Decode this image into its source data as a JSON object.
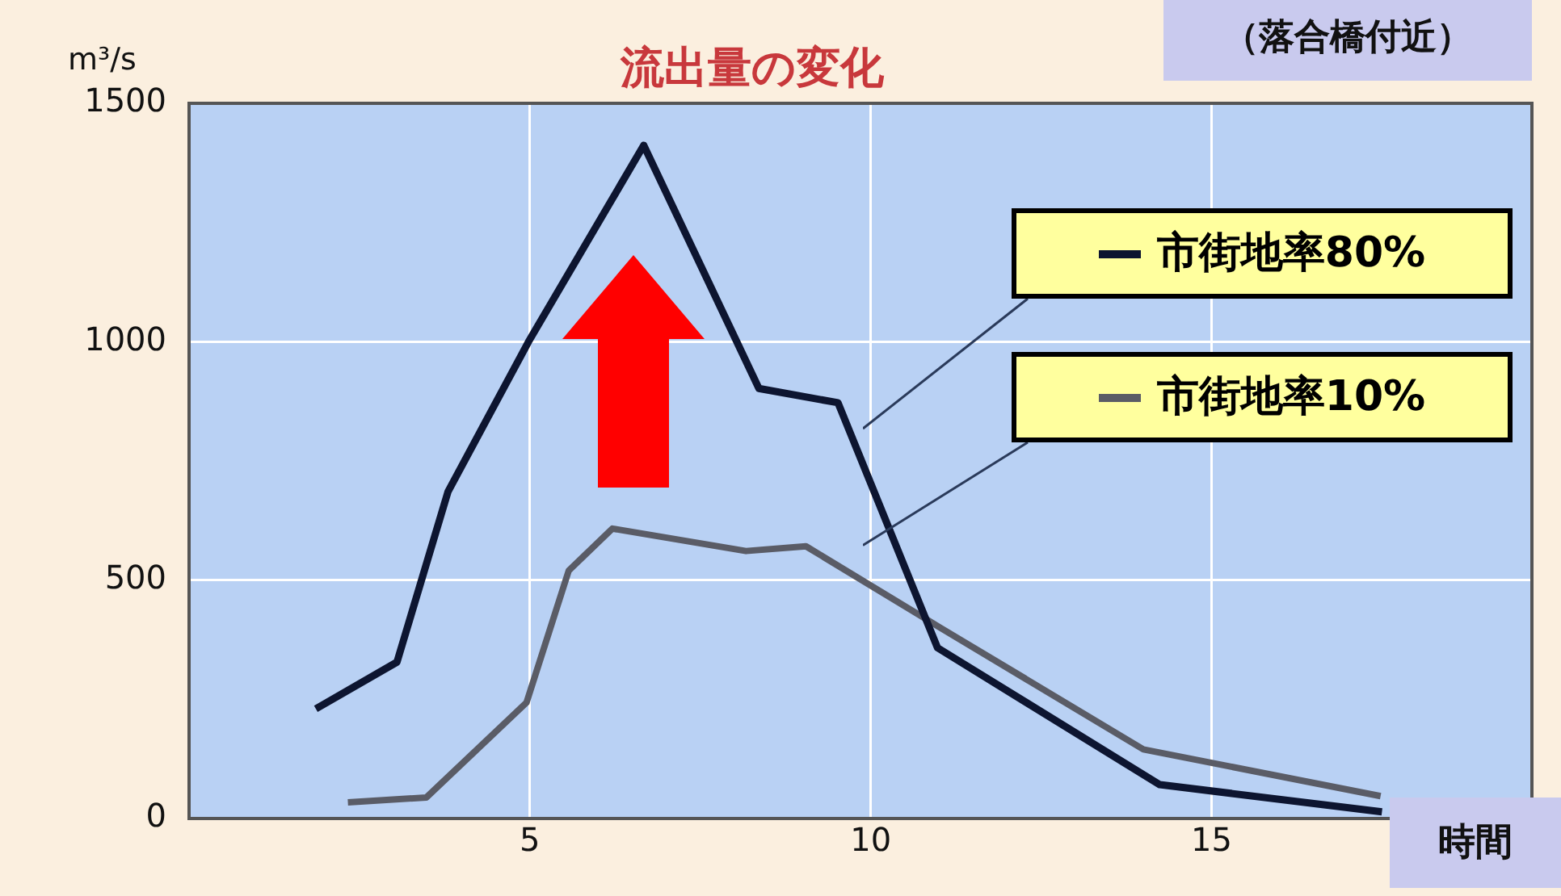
{
  "chart_data": {
    "type": "line",
    "title": "流出量の変化",
    "subtitle": "（落合橋付近）",
    "xlabel": "時間",
    "ylabel": "m³/s",
    "xlim": [
      0,
      19.7
    ],
    "xticks": [
      5,
      10,
      15
    ],
    "ylim": [
      0,
      1500
    ],
    "yticks": [
      0,
      500,
      1000,
      1500
    ],
    "grid": true,
    "legend": "right",
    "marker": "none",
    "line_style": "solid",
    "series": [
      {
        "name": "市街地率80%",
        "color": "#0d1530",
        "x": [
          1.86,
          3.05,
          3.8,
          4.98,
          6.67,
          8.36,
          9.52,
          10.98,
          14.24,
          17.5
        ],
        "values": [
          230,
          328,
          686,
          1000,
          1412,
          902,
          872,
          358,
          71,
          14
        ]
      },
      {
        "name": "市街地率10%",
        "color": "#5a5c66",
        "x": [
          2.33,
          3.48,
          4.95,
          5.57,
          6.21,
          8.17,
          9.05,
          11,
          14,
          17.48
        ],
        "values": [
          34,
          44,
          243,
          520,
          608,
          561,
          571,
          402,
          145,
          47
        ]
      }
    ]
  }
}
